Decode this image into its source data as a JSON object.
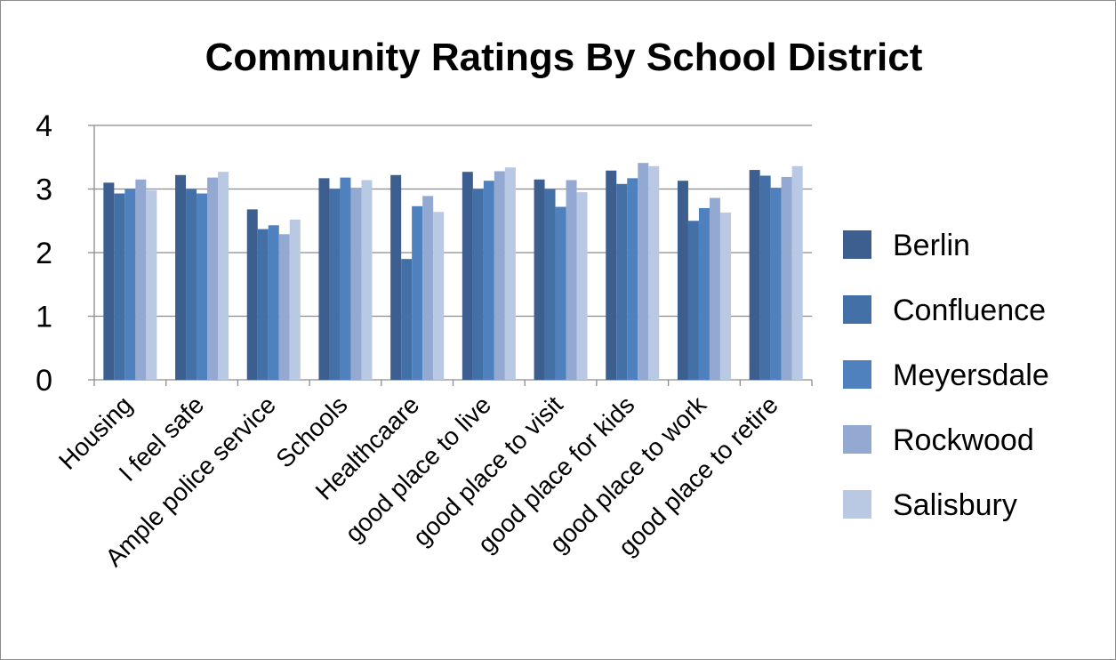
{
  "chart_data": {
    "type": "bar",
    "title": "Community Ratings By School District",
    "xlabel": "",
    "ylabel": "",
    "ylim": [
      0,
      4
    ],
    "yticks": [
      "0",
      "1",
      "2",
      "3",
      "4"
    ],
    "grid": true,
    "legend_position": "right",
    "categories": [
      "Housing",
      "I feel safe",
      "Ample police service",
      "Schools",
      "Healthcaare",
      "good place to live",
      "good place to visit",
      "good place for kids",
      "good place to work",
      "good place to retire"
    ],
    "series": [
      {
        "name": "Berlin",
        "color": "#3C5F8F",
        "values": [
          3.1,
          3.22,
          2.68,
          3.17,
          3.22,
          3.27,
          3.15,
          3.29,
          3.13,
          3.3
        ]
      },
      {
        "name": "Confluence",
        "color": "#4470A8",
        "values": [
          2.93,
          3.0,
          2.37,
          3.0,
          1.9,
          3.0,
          3.0,
          3.08,
          2.5,
          3.21
        ]
      },
      {
        "name": "Meyersdale",
        "color": "#4E81BD",
        "values": [
          3.0,
          2.93,
          2.43,
          3.18,
          2.73,
          3.13,
          2.72,
          3.17,
          2.7,
          3.02
        ]
      },
      {
        "name": "Rockwood",
        "color": "#93A9D1",
        "values": [
          3.15,
          3.18,
          2.29,
          3.02,
          2.89,
          3.28,
          3.14,
          3.41,
          2.86,
          3.19
        ]
      },
      {
        "name": "Salisbury",
        "color": "#B9C8E3",
        "values": [
          2.98,
          3.27,
          2.52,
          3.14,
          2.64,
          3.34,
          2.95,
          3.36,
          2.63,
          3.36
        ]
      }
    ]
  }
}
